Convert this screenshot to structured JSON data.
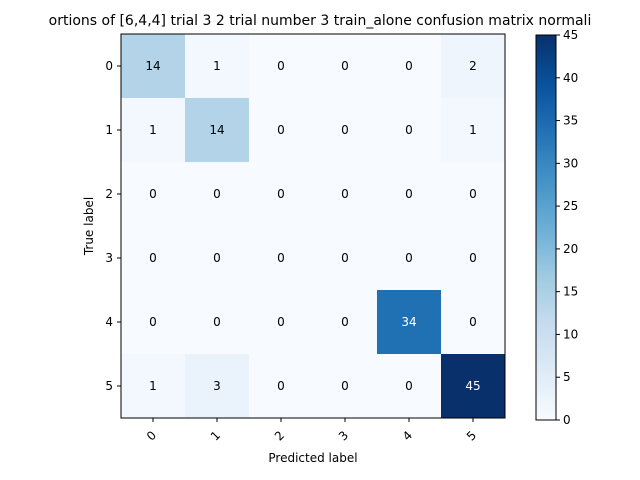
{
  "chart_data": {
    "type": "heatmap",
    "title": "ortions of [6,4,4] trial 3 2 trial number 3 train_alone confusion matrix normali",
    "xlabel": "Predicted label",
    "ylabel": "True label",
    "x_categories": [
      "0",
      "1",
      "2",
      "3",
      "4",
      "5"
    ],
    "y_categories": [
      "0",
      "1",
      "2",
      "3",
      "4",
      "5"
    ],
    "matrix": [
      [
        14,
        1,
        0,
        0,
        0,
        2
      ],
      [
        1,
        14,
        0,
        0,
        0,
        1
      ],
      [
        0,
        0,
        0,
        0,
        0,
        0
      ],
      [
        0,
        0,
        0,
        0,
        0,
        0
      ],
      [
        0,
        0,
        0,
        0,
        34,
        0
      ],
      [
        1,
        3,
        0,
        0,
        0,
        45
      ]
    ],
    "colormap": "Blues",
    "vmin": 0,
    "vmax": 45,
    "colorbar_ticks": [
      "0",
      "5",
      "10",
      "15",
      "20",
      "25",
      "30",
      "35",
      "40",
      "45"
    ],
    "x_tick_rotation": "45 degrees",
    "grid": false,
    "text_color_light": "#ffffff",
    "text_color_dark": "#000000"
  }
}
